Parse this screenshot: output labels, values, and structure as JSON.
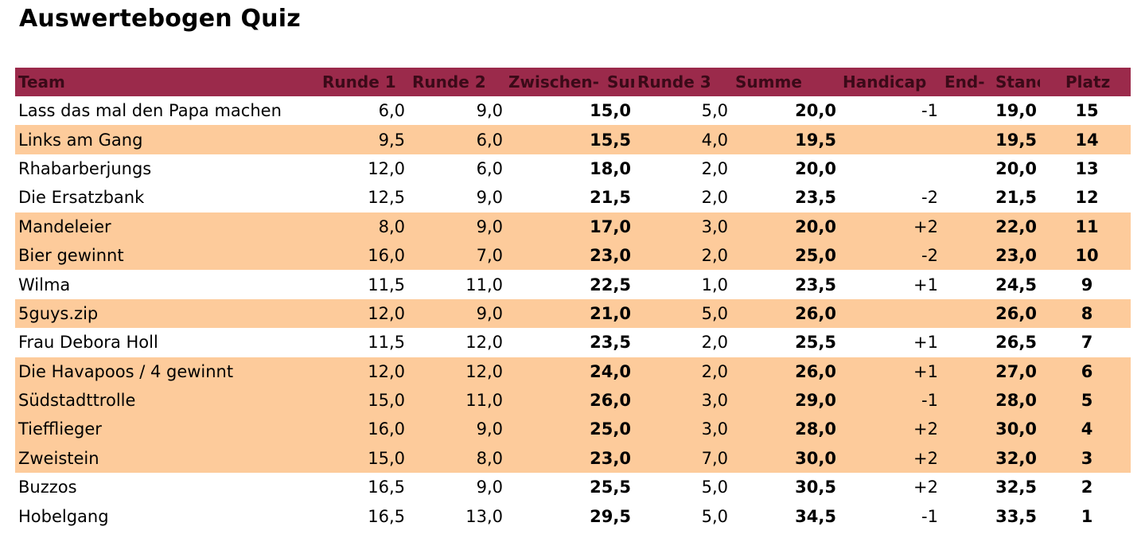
{
  "title": "Auswertebogen Quiz",
  "headers": {
    "team": "Team",
    "runde1": "Runde 1",
    "runde2": "Runde 2",
    "zwischen_a": "Zwischen-",
    "zwischen_b": "Sur",
    "runde3": "Runde 3",
    "summe": "Summe",
    "handicap": "Handicap",
    "end_a": "End-",
    "end_b": "Stanc",
    "platz": "Platz"
  },
  "colors": {
    "header_bg": "#9b2a4b",
    "row_shade": "#fdcb9b"
  },
  "rows": [
    {
      "team": "Lass das mal den Papa machen",
      "r1": "6,0",
      "r2": "9,0",
      "zw": "15,0",
      "r3": "5,0",
      "summe": "20,0",
      "hc": "-1",
      "end": "19,0",
      "platz": "15",
      "shade": false
    },
    {
      "team": "Links am Gang",
      "r1": "9,5",
      "r2": "6,0",
      "zw": "15,5",
      "r3": "4,0",
      "summe": "19,5",
      "hc": "",
      "end": "19,5",
      "platz": "14",
      "shade": true
    },
    {
      "team": "Rhabarberjungs",
      "r1": "12,0",
      "r2": "6,0",
      "zw": "18,0",
      "r3": "2,0",
      "summe": "20,0",
      "hc": "",
      "end": "20,0",
      "platz": "13",
      "shade": false
    },
    {
      "team": "Die Ersatzbank",
      "r1": "12,5",
      "r2": "9,0",
      "zw": "21,5",
      "r3": "2,0",
      "summe": "23,5",
      "hc": "-2",
      "end": "21,5",
      "platz": "12",
      "shade": false
    },
    {
      "team": "Mandeleier",
      "r1": "8,0",
      "r2": "9,0",
      "zw": "17,0",
      "r3": "3,0",
      "summe": "20,0",
      "hc": "+2",
      "end": "22,0",
      "platz": "11",
      "shade": true
    },
    {
      "team": "Bier gewinnt",
      "r1": "16,0",
      "r2": "7,0",
      "zw": "23,0",
      "r3": "2,0",
      "summe": "25,0",
      "hc": "-2",
      "end": "23,0",
      "platz": "10",
      "shade": true
    },
    {
      "team": "Wilma",
      "r1": "11,5",
      "r2": "11,0",
      "zw": "22,5",
      "r3": "1,0",
      "summe": "23,5",
      "hc": "+1",
      "end": "24,5",
      "platz": "9",
      "shade": false
    },
    {
      "team": "5guys.zip",
      "r1": "12,0",
      "r2": "9,0",
      "zw": "21,0",
      "r3": "5,0",
      "summe": "26,0",
      "hc": "",
      "end": "26,0",
      "platz": "8",
      "shade": true
    },
    {
      "team": "Frau Debora Holl",
      "r1": "11,5",
      "r2": "12,0",
      "zw": "23,5",
      "r3": "2,0",
      "summe": "25,5",
      "hc": "+1",
      "end": "26,5",
      "platz": "7",
      "shade": false
    },
    {
      "team": "Die Havapoos / 4 gewinnt",
      "r1": "12,0",
      "r2": "12,0",
      "zw": "24,0",
      "r3": "2,0",
      "summe": "26,0",
      "hc": "+1",
      "end": "27,0",
      "platz": "6",
      "shade": true
    },
    {
      "team": "Südstadttrolle",
      "r1": "15,0",
      "r2": "11,0",
      "zw": "26,0",
      "r3": "3,0",
      "summe": "29,0",
      "hc": "-1",
      "end": "28,0",
      "platz": "5",
      "shade": true
    },
    {
      "team": "Tiefflieger",
      "r1": "16,0",
      "r2": "9,0",
      "zw": "25,0",
      "r3": "3,0",
      "summe": "28,0",
      "hc": "+2",
      "end": "30,0",
      "platz": "4",
      "shade": true
    },
    {
      "team": "Zweistein",
      "r1": "15,0",
      "r2": "8,0",
      "zw": "23,0",
      "r3": "7,0",
      "summe": "30,0",
      "hc": "+2",
      "end": "32,0",
      "platz": "3",
      "shade": true
    },
    {
      "team": "Buzzos",
      "r1": "16,5",
      "r2": "9,0",
      "zw": "25,5",
      "r3": "5,0",
      "summe": "30,5",
      "hc": "+2",
      "end": "32,5",
      "platz": "2",
      "shade": false
    },
    {
      "team": "Hobelgang",
      "r1": "16,5",
      "r2": "13,0",
      "zw": "29,5",
      "r3": "5,0",
      "summe": "34,5",
      "hc": "-1",
      "end": "33,5",
      "platz": "1",
      "shade": false
    }
  ]
}
